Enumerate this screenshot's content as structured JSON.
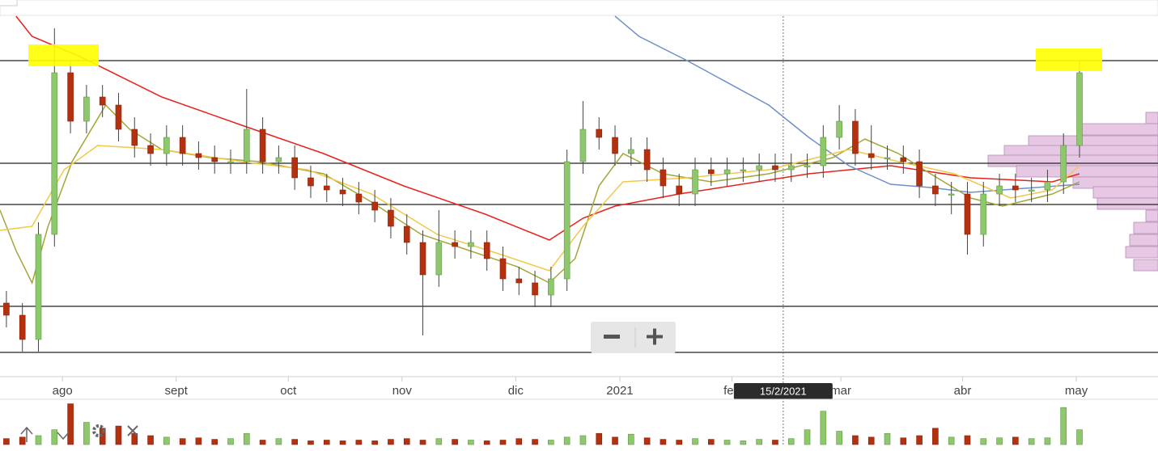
{
  "chart_data": {
    "type": "candlestick",
    "xlim": [
      -0.4,
      71.9
    ],
    "ylim": [
      0,
      89
    ],
    "xticks": [
      {
        "value": 3.5,
        "label": "ago"
      },
      {
        "value": 10.6,
        "label": "sept"
      },
      {
        "value": 17.6,
        "label": "oct"
      },
      {
        "value": 24.7,
        "label": "nov"
      },
      {
        "value": 31.8,
        "label": "dic"
      },
      {
        "value": 38.3,
        "label": "2021"
      },
      {
        "value": 45.3,
        "label": "feb"
      },
      {
        "value": 52.1,
        "label": "mar"
      },
      {
        "value": 59.7,
        "label": "abr"
      },
      {
        "value": 66.8,
        "label": "may"
      }
    ],
    "open": [
      18,
      15,
      9,
      35,
      75,
      63,
      69,
      67,
      61,
      57,
      55,
      59,
      55,
      54,
      53,
      53,
      61,
      53,
      54,
      49,
      47,
      46,
      45,
      43,
      41,
      37,
      33,
      25,
      33,
      32,
      33,
      29,
      24,
      23,
      20,
      24,
      53,
      61,
      59,
      55,
      56,
      51,
      47,
      45,
      51,
      50,
      51,
      51,
      52,
      51,
      52,
      52,
      59,
      63,
      55,
      54,
      54,
      53,
      47,
      45,
      45,
      35,
      45,
      47,
      46,
      46,
      48,
      57
    ],
    "high": [
      21,
      18,
      38,
      86,
      78,
      72,
      72,
      70,
      64,
      60,
      62,
      62,
      58,
      57,
      56,
      71,
      64,
      57,
      57,
      52,
      50,
      49,
      48,
      46,
      44,
      40,
      36,
      41,
      36,
      36,
      36,
      32,
      27,
      26,
      27,
      56,
      68,
      64,
      62,
      59,
      59,
      54,
      50,
      54,
      54,
      54,
      54,
      55,
      55,
      55,
      55,
      62,
      67,
      66,
      62,
      57,
      57,
      56,
      50,
      48,
      48,
      48,
      50,
      50,
      49,
      51,
      60,
      78
    ],
    "low": [
      12,
      6,
      6,
      32,
      60,
      60,
      64,
      58,
      54,
      52,
      52,
      52,
      51,
      50,
      50,
      50,
      50,
      50,
      46,
      44,
      43,
      42,
      40,
      38,
      34,
      30,
      10,
      22,
      29,
      29,
      26,
      21,
      20,
      17,
      17,
      21,
      50,
      56,
      52,
      52,
      48,
      44,
      42,
      42,
      47,
      47,
      48,
      48,
      48,
      48,
      49,
      49,
      56,
      52,
      51,
      51,
      50,
      44,
      42,
      40,
      30,
      32,
      42,
      43,
      43,
      43,
      45,
      54
    ],
    "close": [
      15,
      9,
      35,
      75,
      63,
      69,
      67,
      61,
      57,
      55,
      59,
      55,
      54,
      53,
      53,
      61,
      53,
      54,
      49,
      47,
      46,
      45,
      43,
      41,
      37,
      33,
      25,
      33,
      32,
      33,
      29,
      24,
      23,
      20,
      24,
      53,
      61,
      59,
      55,
      56,
      51,
      47,
      45,
      51,
      50,
      51,
      51,
      52,
      51,
      52,
      52,
      59,
      63,
      55,
      54,
      54,
      53,
      47,
      45,
      45,
      35,
      45,
      47,
      46,
      46,
      48,
      57,
      75
    ],
    "up_color": "#8fc76c",
    "down_color": "#b5300f",
    "moving_averages": [
      {
        "color": "#e8221b",
        "x": [
          0.6,
          1.6,
          4.6,
          9.7,
          14.7,
          19.8,
          24.8,
          29.9,
          33.9,
          36,
          38,
          42,
          50.1,
          55.2,
          60.2,
          65.3,
          67
        ],
        "values": [
          89,
          84,
          79,
          69,
          62,
          55,
          47,
          40,
          33.6,
          39,
          42,
          45,
          50,
          52,
          49,
          48,
          50
        ]
      },
      {
        "color": "#6f8fc9",
        "x": [
          38,
          39.5,
          42.5,
          47.6,
          50.1,
          52.6,
          55.2,
          57.7,
          60.2,
          67
        ],
        "values": [
          89,
          84,
          78,
          67,
          59,
          52,
          47.4,
          46.6,
          45.4,
          47.4
        ]
      },
      {
        "color": "#a5a63a",
        "x": [
          -0.4,
          0.6,
          1.6,
          2.6,
          4.1,
          6.2,
          7.7,
          9.7,
          12.7,
          15.8,
          19.8,
          22.8,
          25.9,
          28.9,
          31.9,
          33.9,
          35.5,
          37,
          38.5,
          41,
          44,
          47.6,
          51.6,
          53.6,
          55.7,
          57.7,
          60.2,
          62.2,
          65.3,
          67
        ],
        "values": [
          41,
          31,
          23,
          37,
          53,
          67,
          61,
          56,
          54,
          53,
          50,
          43,
          35,
          31,
          27,
          23,
          29,
          47,
          55,
          50,
          48,
          50,
          54,
          58.6,
          55,
          50,
          44,
          42,
          45,
          48
        ]
      },
      {
        "color": "#f2c84b",
        "x": [
          -0.4,
          1.6,
          3.6,
          5.7,
          9.7,
          14.7,
          18.8,
          22.8,
          26.9,
          30.9,
          33.9,
          36,
          38.5,
          42.5,
          47.6,
          52.6,
          55.7,
          59.2,
          62.7,
          65.3,
          67
        ],
        "values": [
          36,
          37,
          51,
          57,
          56,
          53,
          51,
          45,
          35,
          30,
          26,
          37,
          48,
          49,
          51,
          56,
          53,
          50,
          44,
          46,
          52
        ]
      }
    ],
    "levels": [
      78,
      52.6,
      42.4,
      17.2,
      5.8
    ],
    "volume": {
      "ylim": [
        0,
        60
      ],
      "values": [
        8,
        10,
        12,
        20,
        55,
        30,
        22,
        25,
        15,
        12,
        10,
        8,
        9,
        7,
        8,
        15,
        6,
        8,
        7,
        5,
        6,
        5,
        6,
        5,
        7,
        8,
        6,
        8,
        7,
        6,
        5,
        6,
        8,
        7,
        6,
        10,
        12,
        15,
        10,
        14,
        9,
        7,
        6,
        8,
        7,
        6,
        5,
        7,
        6,
        8,
        20,
        45,
        18,
        12,
        10,
        15,
        9,
        12,
        22,
        10,
        12,
        8,
        9,
        10,
        8,
        9,
        50,
        20
      ]
    },
    "profile": {
      "color": "#e6c8e4",
      "xlim": [
        0,
        250
      ],
      "levels": [
        63.8,
        61,
        58,
        55.6,
        53.2,
        50.6,
        47.8,
        45.4,
        42.6,
        39.6,
        36.6,
        33.6,
        30.6,
        27.4
      ],
      "values": [
        15,
        95,
        160,
        190,
        210,
        175,
        105,
        80,
        75,
        15,
        30,
        35,
        40,
        30
      ]
    },
    "crosshair": {
      "x": 48.5,
      "label": "15/2/2021"
    }
  }
}
